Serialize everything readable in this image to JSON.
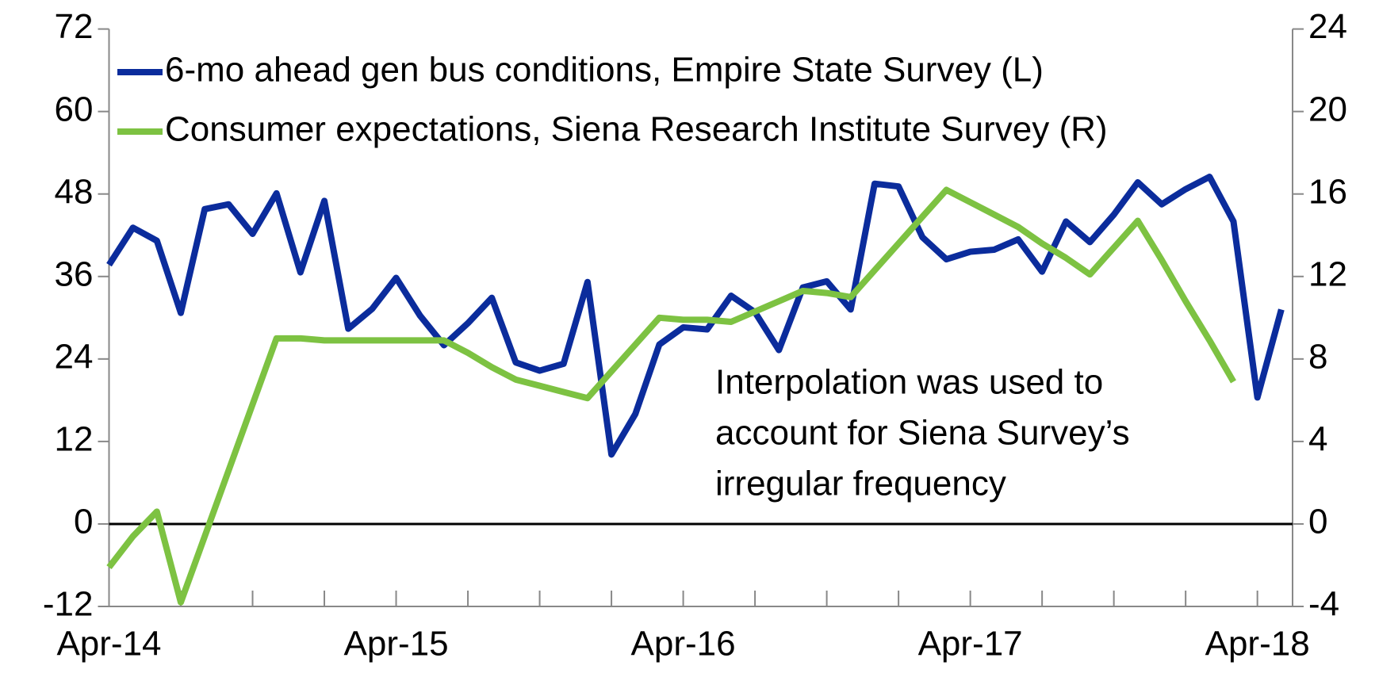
{
  "chart_data": {
    "type": "line",
    "categories": [
      "Apr-14",
      null,
      null,
      null,
      null,
      null,
      null,
      null,
      null,
      null,
      null,
      null,
      "Apr-15",
      null,
      null,
      null,
      null,
      null,
      null,
      null,
      null,
      null,
      null,
      null,
      "Apr-16",
      null,
      null,
      null,
      null,
      null,
      null,
      null,
      null,
      null,
      null,
      null,
      "Apr-17",
      null,
      null,
      null,
      null,
      null,
      null,
      null,
      null,
      null,
      null,
      null,
      "Apr-18",
      null
    ],
    "series": [
      {
        "name": "6-mo ahead gen bus conditions, Empire State Survey (L)",
        "color": "#0b2c9c",
        "axis": "y",
        "values": [
          37.7,
          43.1,
          41.2,
          30.7,
          45.8,
          46.5,
          42.2,
          48.1,
          36.6,
          47.0,
          28.4,
          31.3,
          35.8,
          30.3,
          26.0,
          29.2,
          32.9,
          23.5,
          22.3,
          23.3,
          35.2,
          10.1,
          16.0,
          26.1,
          28.6,
          28.3,
          33.2,
          30.8,
          25.3,
          34.4,
          35.3,
          31.2,
          49.5,
          49.1,
          41.7,
          38.5,
          39.6,
          39.9,
          41.4,
          36.7,
          44.0,
          41.0,
          45.0,
          49.7,
          46.5,
          48.7,
          50.5,
          44.0,
          18.4,
          31.2
        ]
      },
      {
        "name": "Consumer expectations, Siena Research Institute Survey (R)",
        "color": "#7dc242",
        "axis": "y2",
        "values": [
          -2.1,
          -0.6,
          0.6,
          -3.8,
          -0.6,
          2.6,
          5.8,
          9.0,
          9.0,
          8.9,
          8.9,
          8.9,
          8.9,
          8.9,
          8.9,
          8.3,
          7.6,
          7.0,
          6.7,
          6.4,
          6.1,
          7.4,
          8.7,
          10.0,
          9.9,
          9.9,
          9.8,
          10.3,
          10.8,
          11.3,
          11.2,
          11.0,
          12.3,
          13.6,
          14.9,
          16.2,
          15.6,
          15.0,
          14.4,
          13.6,
          12.9,
          12.1,
          13.4,
          14.7,
          12.8,
          10.8,
          8.9,
          6.9,
          null,
          null
        ]
      }
    ],
    "ylim": [
      -12,
      72
    ],
    "yticks": [
      -12,
      0,
      12,
      24,
      36,
      48,
      60,
      72
    ],
    "y2lim": [
      -4,
      24
    ],
    "y2ticks": [
      -4,
      0,
      4,
      8,
      12,
      16,
      20,
      24
    ],
    "annotation": [
      "Interpolation was used to",
      "account for Siena Survey’s",
      "irregular frequency"
    ],
    "legend": "upper left"
  }
}
